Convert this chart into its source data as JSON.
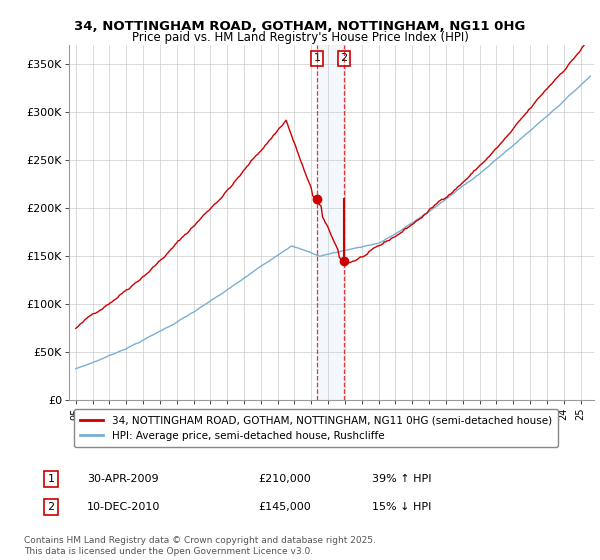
{
  "title1": "34, NOTTINGHAM ROAD, GOTHAM, NOTTINGHAM, NG11 0HG",
  "title2": "Price paid vs. HM Land Registry's House Price Index (HPI)",
  "ylim": [
    0,
    370000
  ],
  "yticks": [
    0,
    50000,
    100000,
    150000,
    200000,
    250000,
    300000,
    350000
  ],
  "ytick_labels": [
    "£0",
    "£50K",
    "£100K",
    "£150K",
    "£200K",
    "£250K",
    "£300K",
    "£350K"
  ],
  "legend1_label": "34, NOTTINGHAM ROAD, GOTHAM, NOTTINGHAM, NG11 0HG (semi-detached house)",
  "legend2_label": "HPI: Average price, semi-detached house, Rushcliffe",
  "marker1_date": 2009.33,
  "marker1_price": 210000,
  "marker1_text": "30-APR-2009",
  "marker1_hpi_text": "39% ↑ HPI",
  "marker2_date": 2010.95,
  "marker2_price": 145000,
  "marker2_text": "10-DEC-2010",
  "marker2_hpi_text": "15% ↓ HPI",
  "red_color": "#cc0000",
  "blue_color": "#7aafd4",
  "footnote": "Contains HM Land Registry data © Crown copyright and database right 2025.\nThis data is licensed under the Open Government Licence v3.0.",
  "xmin": 1994.6,
  "xmax": 2025.8
}
